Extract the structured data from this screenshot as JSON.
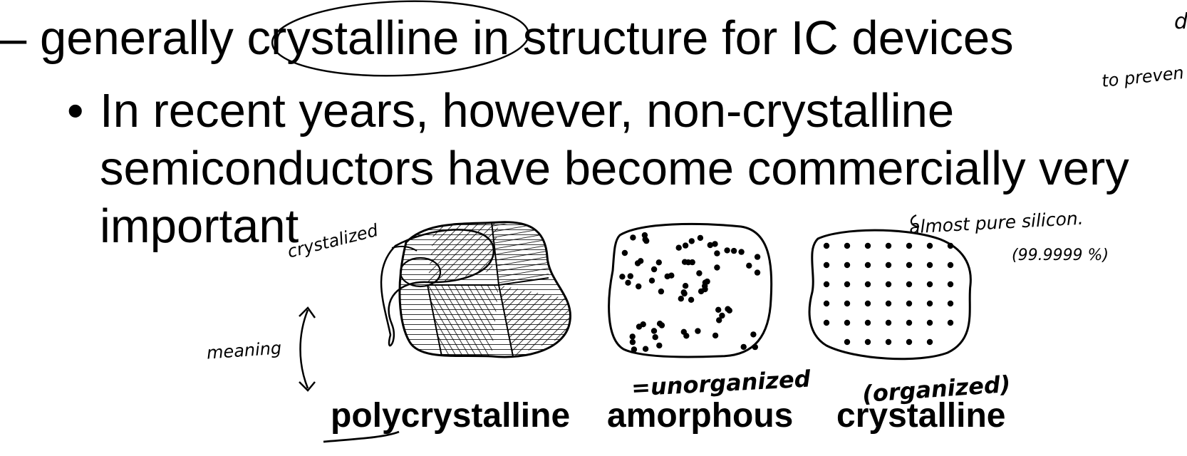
{
  "slide": {
    "dash_glyph": "–",
    "dash_line": "generally crystalline in structure for IC devices",
    "bullet_glyph": "•",
    "bullet_lines": [
      "In recent years, however, non-crystalline",
      "semiconductors have become commercially very",
      "important"
    ],
    "captions": {
      "polycrystalline": "polycrystalline",
      "amorphous": "amorphous",
      "crystalline": "crystalline"
    }
  },
  "annotations": {
    "prevent": "to preven",
    "top_right_letter": "d",
    "crystalized": "crystalized",
    "meaning": "meaning",
    "almost_pure": "almost pure silicon.",
    "purity": "(99.9999 %)",
    "unorganized": "=unorganized",
    "organized": "(organized)",
    "ink_color": "#000000"
  }
}
